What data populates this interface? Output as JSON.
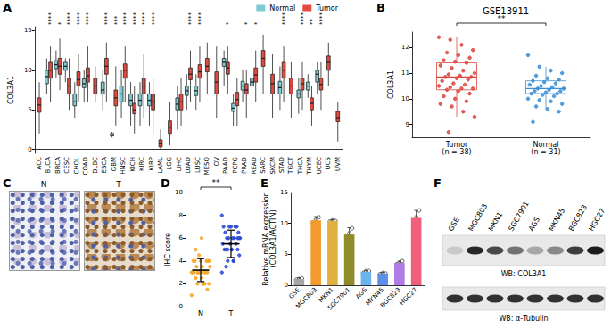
{
  "panel_labels": [
    "A",
    "B",
    "C",
    "D",
    "E",
    "F"
  ],
  "chart_data": [
    {
      "type": "boxplot",
      "ylabel": "COL3A1",
      "categories": [
        "ACC",
        "BLCA",
        "BRCA",
        "CESC",
        "CHOL",
        "COAD",
        "DLBC",
        "ESCA",
        "GBM",
        "HNSC",
        "KICH",
        "KIRC",
        "KIRP",
        "LAML",
        "LGG",
        "LIHC",
        "LUAD",
        "LUSC",
        "MESO",
        "OV",
        "PAAD",
        "PCPG",
        "PRAD",
        "READ",
        "SARC",
        "SKCM",
        "STAD",
        "TGCT",
        "THCA",
        "THYM",
        "UCEC",
        "UCS",
        "UVM"
      ],
      "significance": [
        null,
        "****",
        "*",
        "****",
        "****",
        "****",
        null,
        "****",
        "***",
        "****",
        "****",
        "****",
        "****",
        null,
        null,
        null,
        "****",
        "****",
        null,
        null,
        "*",
        null,
        "*",
        "*",
        null,
        null,
        "****",
        null,
        "****",
        "**",
        "****",
        null,
        null
      ],
      "series": [
        {
          "name": "Normal",
          "color": "#7ecbd3",
          "values": [
            null,
            [
              7,
              8.3,
              9.2,
              10,
              11.5
            ],
            [
              9,
              10.2,
              10.7,
              11.2,
              12.5
            ],
            [
              8.5,
              10,
              10.5,
              11,
              11.5
            ],
            [
              4,
              5.5,
              6,
              7,
              8.5
            ],
            [
              6,
              7.8,
              8.3,
              8.9,
              10
            ],
            null,
            [
              5,
              7,
              7.5,
              8.5,
              10
            ],
            [
              1.5,
              1.7,
              1.8,
              2,
              2.2
            ],
            [
              4,
              6,
              7,
              8,
              10
            ],
            [
              3,
              5.5,
              6.2,
              7,
              8.5
            ],
            [
              3,
              5.5,
              6.2,
              7,
              8.5
            ],
            [
              3,
              5.5,
              6.2,
              7,
              8.5
            ],
            null,
            null,
            [
              2.5,
              5,
              5.7,
              6.5,
              8
            ],
            [
              5,
              6.8,
              7.4,
              8,
              9.5
            ],
            [
              5,
              6.8,
              7.4,
              8,
              9.5
            ],
            null,
            null,
            [
              8,
              10.5,
              11,
              11.5,
              12.5
            ],
            [
              3,
              4.8,
              5.2,
              5.8,
              7
            ],
            [
              6,
              7.5,
              8,
              8.6,
              10
            ],
            [
              7,
              8,
              8.5,
              9,
              10
            ],
            null,
            null,
            [
              5,
              7,
              7.8,
              8.6,
              10.5
            ],
            null,
            [
              4.5,
              6.5,
              7,
              7.5,
              9
            ],
            [
              6.5,
              7.5,
              8,
              8.5,
              9.5
            ],
            [
              7,
              8.5,
              9.5,
              10,
              11
            ],
            null,
            null
          ]
        },
        {
          "name": "Tumor",
          "color": "#e04a3f",
          "values": [
            [
              2,
              4.7,
              5.6,
              6.5,
              8.5
            ],
            [
              6,
              9,
              10,
              11,
              13
            ],
            [
              7.5,
              9.5,
              10.5,
              11.5,
              14
            ],
            [
              5,
              7,
              8,
              9,
              11.5
            ],
            [
              6,
              8,
              8.8,
              9.8,
              12
            ],
            [
              6,
              8.5,
              9.3,
              10.3,
              13
            ],
            [
              6,
              7,
              8,
              9,
              10.5
            ],
            [
              6,
              9.5,
              10.5,
              11.5,
              13.5
            ],
            [
              3,
              5.5,
              6.5,
              7.5,
              10.5
            ],
            [
              6,
              9,
              10,
              10.8,
              13
            ],
            [
              2,
              4.5,
              5,
              5.8,
              8
            ],
            [
              4,
              7,
              8,
              9,
              12
            ],
            [
              2,
              5,
              6,
              7,
              9
            ],
            [
              0,
              0.3,
              0.7,
              1.2,
              2.5
            ],
            [
              0.5,
              2,
              2.8,
              3.6,
              6
            ],
            [
              3,
              5,
              6,
              7,
              9
            ],
            [
              6,
              8.8,
              9.5,
              10.3,
              12.5
            ],
            [
              6,
              9,
              9.8,
              10.7,
              13
            ],
            [
              7,
              9.8,
              10.5,
              11.5,
              13.5
            ],
            [
              4,
              7,
              8.5,
              9.8,
              13
            ],
            [
              7,
              9.5,
              10.3,
              11,
              13
            ],
            [
              3,
              5.5,
              6.3,
              7.2,
              9
            ],
            [
              4,
              7,
              7.5,
              8.3,
              10
            ],
            [
              6,
              8.5,
              9.4,
              10.3,
              12.5
            ],
            [
              7,
              10.5,
              11.5,
              12.5,
              14.5
            ],
            [
              4,
              7,
              8.3,
              9.5,
              12
            ],
            [
              6,
              9,
              10,
              11,
              13
            ],
            [
              4,
              7,
              8,
              9,
              11
            ],
            [
              5,
              7.5,
              8.3,
              9,
              11
            ],
            [
              3,
              5,
              5.8,
              6.5,
              8
            ],
            [
              5,
              7.5,
              8.2,
              9,
              11
            ],
            [
              8,
              10,
              11,
              11.8,
              13.5
            ],
            [
              1,
              3.5,
              4,
              4.8,
              6
            ]
          ]
        }
      ],
      "ylim": [
        -0.5,
        15.5
      ],
      "yticks": [
        0,
        5,
        10,
        15
      ],
      "legend": "top-right"
    },
    {
      "type": "boxplot",
      "title": "GSE13911",
      "ylabel": "COL3A1",
      "categories": [
        "Tumor\n(n = 38)",
        "Normal\n(n = 31)"
      ],
      "colors": [
        "#d9473f",
        "#3b8fd6"
      ],
      "boxes": [
        [
          9.3,
          10.35,
          10.85,
          11.4,
          12.4
        ],
        [
          9.6,
          10.2,
          10.4,
          10.7,
          11.25
        ]
      ],
      "points": [
        [
          12.4,
          12.3,
          12.1,
          11.9,
          11.8,
          11.7,
          11.6,
          11.5,
          11.45,
          11.4,
          11.3,
          11.2,
          11.1,
          11.0,
          10.95,
          10.9,
          10.85,
          10.85,
          10.8,
          10.75,
          10.7,
          10.6,
          10.55,
          10.5,
          10.45,
          10.4,
          10.4,
          10.35,
          10.3,
          10.2,
          10.1,
          10.0,
          9.9,
          9.8,
          9.7,
          9.5,
          9.3,
          8.7
        ],
        [
          11.7,
          11.25,
          11.1,
          11.0,
          10.9,
          10.8,
          10.75,
          10.7,
          10.65,
          10.6,
          10.55,
          10.5,
          10.45,
          10.4,
          10.4,
          10.35,
          10.3,
          10.3,
          10.25,
          10.2,
          10.2,
          10.15,
          10.1,
          10.0,
          9.95,
          9.9,
          9.8,
          9.7,
          9.6,
          9.5,
          9.1
        ]
      ],
      "significance": "**",
      "ylim": [
        8.5,
        12.6
      ],
      "yticks": [
        9,
        10,
        11,
        12
      ]
    },
    {
      "type": "scatter",
      "ylabel": "IHC score",
      "categories": [
        "N",
        "T"
      ],
      "colors": [
        "#f5a623",
        "#2948d6"
      ],
      "points": [
        [
          1,
          2,
          2,
          2,
          2.5,
          2.5,
          3,
          3,
          3,
          3,
          3,
          3,
          3,
          3.5,
          3.5,
          3.5,
          4,
          4,
          4,
          4,
          4,
          4.5,
          2,
          3,
          3,
          2,
          4,
          5,
          6,
          1.5
        ],
        [
          3,
          4,
          4,
          4.5,
          5,
          5,
          5,
          5,
          5.5,
          5.5,
          5.5,
          6,
          6,
          6,
          6,
          6,
          6.5,
          6.5,
          7,
          7,
          7,
          7,
          7,
          8,
          5,
          4,
          6,
          3.5,
          5,
          6
        ]
      ],
      "mean": [
        3.2,
        5.5
      ],
      "sd": [
        1.0,
        1.2
      ],
      "significance": "**",
      "ylim": [
        0,
        10
      ],
      "yticks": [
        0,
        2,
        4,
        6,
        8,
        10
      ]
    },
    {
      "type": "bar",
      "ylabel": "Relative mRNA expression\n(COL3A1/ACTIN)",
      "categories": [
        "GSE",
        "MGC803",
        "MKN1",
        "SGC7901",
        "AGS",
        "MKN45",
        "BGC823",
        "HGC27"
      ],
      "values": [
        1.0,
        10.5,
        10.4,
        8.2,
        2.2,
        1.9,
        3.6,
        10.9
      ],
      "sd": [
        0.2,
        0.6,
        0.2,
        1.1,
        0.2,
        0.2,
        0.3,
        1.2
      ],
      "replicates": [
        [
          0.9,
          1.0,
          1.1
        ],
        [
          10.0,
          10.6,
          11.0
        ],
        [
          10.3,
          10.5,
          10.4
        ],
        [
          7.0,
          8.4,
          9.2
        ],
        [
          2.0,
          2.3,
          2.3
        ],
        [
          1.8,
          2.0,
          1.9
        ],
        [
          3.4,
          3.6,
          3.9
        ],
        [
          9.7,
          11.0,
          12.1
        ]
      ],
      "colors": [
        "#a6a6a6",
        "#f29a2e",
        "#e2b040",
        "#8f8a2a",
        "#6ab4ec",
        "#5b8fe8",
        "#b07be6",
        "#f0607a"
      ],
      "ylim": [
        0,
        15
      ],
      "yticks": [
        0,
        5,
        10,
        15
      ]
    }
  ],
  "images": {
    "labels": [
      "N",
      "T"
    ]
  },
  "blot": {
    "lanes": [
      "GSE",
      "MGC803",
      "MKN1",
      "SGC7901",
      "AGS",
      "MKN45",
      "BGC823",
      "HGC27"
    ],
    "bands": [
      {
        "label": "WB: COL3A1",
        "intensity": [
          0.15,
          0.9,
          0.75,
          0.55,
          0.3,
          0.45,
          0.8,
          0.95
        ]
      },
      {
        "label": "WB: α-Tubulin",
        "intensity": [
          0.85,
          0.85,
          0.85,
          0.85,
          0.85,
          0.85,
          0.85,
          0.85
        ]
      }
    ]
  }
}
